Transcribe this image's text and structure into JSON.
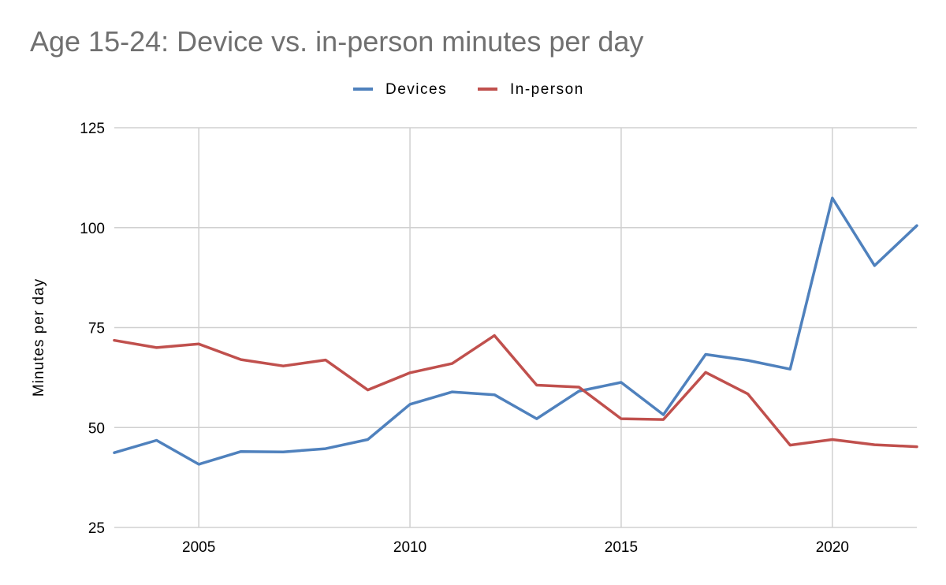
{
  "chart_data": {
    "type": "line",
    "title": "Age 15-24: Device vs. in-person minutes per day",
    "xlabel": "",
    "ylabel": "Minutes per day",
    "xlim": [
      2003,
      2022
    ],
    "ylim": [
      25,
      125
    ],
    "x_ticks": [
      2005,
      2010,
      2015,
      2020
    ],
    "y_ticks": [
      25,
      50,
      75,
      100,
      125
    ],
    "grid": true,
    "legend_position": "top-center",
    "x": [
      2003,
      2004,
      2005,
      2006,
      2007,
      2008,
      2009,
      2010,
      2011,
      2012,
      2013,
      2014,
      2015,
      2016,
      2017,
      2018,
      2019,
      2020,
      2021,
      2022
    ],
    "series": [
      {
        "name": "Devices",
        "color": "#4F81BD",
        "values": [
          43.7,
          46.8,
          40.8,
          44.0,
          43.9,
          44.7,
          47.0,
          55.8,
          58.9,
          58.2,
          52.2,
          59.1,
          61.3,
          53.2,
          68.3,
          66.8,
          64.6,
          107.4,
          90.5,
          100.5
        ]
      },
      {
        "name": "In-person",
        "color": "#C0504D",
        "values": [
          71.8,
          70.0,
          70.9,
          67.0,
          65.4,
          66.9,
          59.4,
          63.7,
          66.0,
          73.0,
          60.6,
          60.1,
          52.2,
          52.0,
          63.8,
          58.4,
          45.6,
          47.0,
          45.7,
          45.2
        ]
      }
    ]
  }
}
